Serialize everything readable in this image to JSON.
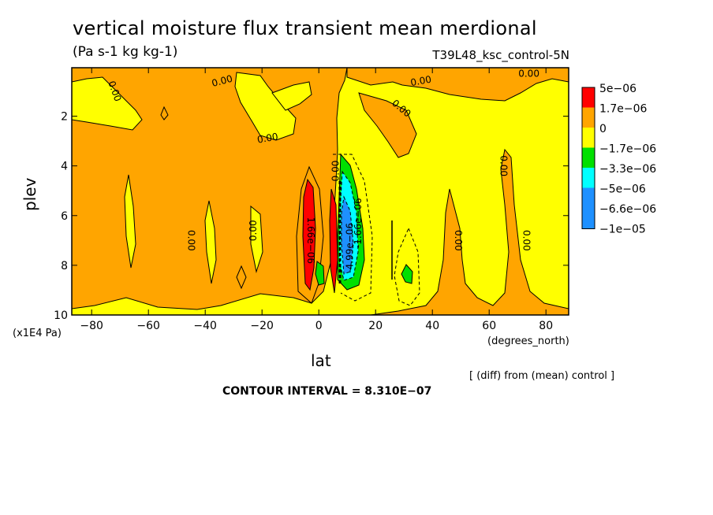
{
  "chart_data": {
    "type": "heatmap",
    "title": "vertical moisture flux transient mean merdional",
    "units": "(Pa s-1 kg kg-1)",
    "run_label": "T39L48_ksc_control-5N",
    "xlabel": "lat",
    "x_units": "(degrees_north)",
    "ylabel": "plev",
    "y_units": "(x1E4 Pa)",
    "xlim": [
      -87,
      88
    ],
    "ylim": [
      10,
      0.05
    ],
    "x_ticks": [
      {
        "v": -80,
        "label": "−80"
      },
      {
        "v": -60,
        "label": "−60"
      },
      {
        "v": -40,
        "label": "−40"
      },
      {
        "v": -20,
        "label": "−20"
      },
      {
        "v": 0,
        "label": "0"
      },
      {
        "v": 20,
        "label": "20"
      },
      {
        "v": 40,
        "label": "40"
      },
      {
        "v": 60,
        "label": "60"
      },
      {
        "v": 80,
        "label": "80"
      }
    ],
    "y_ticks": [
      {
        "v": 2,
        "label": "2"
      },
      {
        "v": 4,
        "label": "4"
      },
      {
        "v": 6,
        "label": "6"
      },
      {
        "v": 8,
        "label": "8"
      },
      {
        "v": 10,
        "label": "10"
      }
    ],
    "legend": {
      "placement": "right",
      "colors": [
        "#ff0000",
        "#ffa500",
        "#ffff00",
        "#00e000",
        "#00ffff",
        "#1e90ff"
      ],
      "labels": [
        "5e−06",
        "1.7e−06",
        "0",
        "−1.7e−06",
        "−3.3e−06",
        "−5e−06",
        "−6.6e−06",
        "−1e−05"
      ]
    },
    "contour_labels": [
      {
        "x": -72,
        "y": 1.0,
        "text": "0.00",
        "rot": 70
      },
      {
        "x": -34,
        "y": 0.6,
        "text": "0.00",
        "rot": -15
      },
      {
        "x": -18,
        "y": 2.9,
        "text": "0.00",
        "rot": -10
      },
      {
        "x": -23,
        "y": 6.6,
        "text": "0.00",
        "rot": -90
      },
      {
        "x": -45,
        "y": 7.0,
        "text": "0.00",
        "rot": 90
      },
      {
        "x": 6,
        "y": 4.2,
        "text": "0.00",
        "rot": -90
      },
      {
        "x": 29,
        "y": 1.7,
        "text": "0.00",
        "rot": 40
      },
      {
        "x": 36,
        "y": 0.6,
        "text": "0.00",
        "rot": -10
      },
      {
        "x": 74,
        "y": 0.3,
        "text": "0.00",
        "rot": 0
      },
      {
        "x": 65,
        "y": 4.0,
        "text": "0.00",
        "rot": 90
      },
      {
        "x": 49,
        "y": 7.0,
        "text": "0.00",
        "rot": 90
      },
      {
        "x": 73,
        "y": 7.0,
        "text": "0.00",
        "rot": 90
      },
      {
        "x": -3,
        "y": 7.0,
        "text": "1.66e−06",
        "rot": 90
      },
      {
        "x": 14,
        "y": 6.3,
        "text": "-1.66e−06",
        "rot": -90
      },
      {
        "x": 11,
        "y": 7.3,
        "text": "-4.99e−06",
        "rot": -90
      }
    ]
  },
  "notes": {
    "diff": "[ (diff) from (mean) control ]",
    "interval": "CONTOUR INTERVAL = 8.310E−07"
  }
}
